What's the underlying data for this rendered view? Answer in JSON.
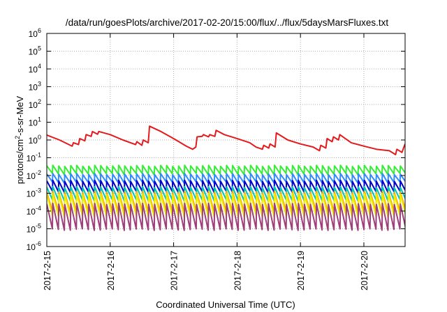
{
  "chart_data": {
    "type": "line",
    "title": "/data/run/goesPlots/archive/2017-02-20/15:00/flux/../flux/5daysMarsFluxes.txt",
    "xlabel": "Coordinated Universal Time (UTC)",
    "ylabel": {
      "base": "protons/cm",
      "sup": "2",
      "rest": "-s-sr-MeV"
    },
    "yscale": "log",
    "ylim_exp": [
      -6,
      6
    ],
    "y_ticks": [
      {
        "base": "10",
        "exp": "-6"
      },
      {
        "base": "10",
        "exp": "-5"
      },
      {
        "base": "10",
        "exp": "-4"
      },
      {
        "base": "10",
        "exp": "-3"
      },
      {
        "base": "10",
        "exp": "-2"
      },
      {
        "base": "10",
        "exp": "-1"
      },
      {
        "base": "10",
        "exp": "0"
      },
      {
        "base": "10",
        "exp": "1"
      },
      {
        "base": "10",
        "exp": "2"
      },
      {
        "base": "10",
        "exp": "3"
      },
      {
        "base": "10",
        "exp": "4"
      },
      {
        "base": "10",
        "exp": "5"
      },
      {
        "base": "10",
        "exp": "6"
      }
    ],
    "x_ticks": [
      "2017-2-15",
      "2017-2-16",
      "2017-2-17",
      "2017-2-18",
      "2017-2-19",
      "2017-2-20"
    ],
    "xlim_days": [
      0,
      5.65
    ],
    "grid": true,
    "series": [
      {
        "color": "#e41a1c",
        "points": [
          [
            0.0,
            1.9
          ],
          [
            0.2,
            1.0
          ],
          [
            0.4,
            0.45
          ],
          [
            0.42,
            0.7
          ],
          [
            0.5,
            0.55
          ],
          [
            0.52,
            1.2
          ],
          [
            0.6,
            0.9
          ],
          [
            0.62,
            2.0
          ],
          [
            0.7,
            1.6
          ],
          [
            0.72,
            3.0
          ],
          [
            0.8,
            2.1
          ],
          [
            0.82,
            3.0
          ],
          [
            1.0,
            2.0
          ],
          [
            1.2,
            1.0
          ],
          [
            1.4,
            0.55
          ],
          [
            1.42,
            0.8
          ],
          [
            1.5,
            0.5
          ],
          [
            1.52,
            1.0
          ],
          [
            1.6,
            0.7
          ],
          [
            1.62,
            6.0
          ],
          [
            1.8,
            3.0
          ],
          [
            2.0,
            1.2
          ],
          [
            2.2,
            0.45
          ],
          [
            2.3,
            0.3
          ],
          [
            2.35,
            0.4
          ],
          [
            2.37,
            1.5
          ],
          [
            2.45,
            1.6
          ],
          [
            2.47,
            2.0
          ],
          [
            2.55,
            1.5
          ],
          [
            2.57,
            2.0
          ],
          [
            2.65,
            1.6
          ],
          [
            2.67,
            3.5
          ],
          [
            2.8,
            2.0
          ],
          [
            3.0,
            1.2
          ],
          [
            3.2,
            0.7
          ],
          [
            3.3,
            0.4
          ],
          [
            3.4,
            0.3
          ],
          [
            3.42,
            0.5
          ],
          [
            3.5,
            0.35
          ],
          [
            3.52,
            0.6
          ],
          [
            3.6,
            0.4
          ],
          [
            3.62,
            2.5
          ],
          [
            3.8,
            1.0
          ],
          [
            4.0,
            0.6
          ],
          [
            4.2,
            0.4
          ],
          [
            4.3,
            0.25
          ],
          [
            4.32,
            0.5
          ],
          [
            4.4,
            0.35
          ],
          [
            4.42,
            1.2
          ],
          [
            4.5,
            0.8
          ],
          [
            4.52,
            1.5
          ],
          [
            4.6,
            1.0
          ],
          [
            4.62,
            2.0
          ],
          [
            4.8,
            0.7
          ],
          [
            5.0,
            0.45
          ],
          [
            5.2,
            0.3
          ],
          [
            5.4,
            0.25
          ],
          [
            5.5,
            0.15
          ],
          [
            5.52,
            0.3
          ],
          [
            5.6,
            0.2
          ],
          [
            5.65,
            0.6
          ]
        ]
      },
      {
        "color": "#33ee33",
        "sawtooth": {
          "period": 0.0945,
          "high": 0.035,
          "low": 0.012
        }
      },
      {
        "color": "#2f8cff",
        "sawtooth": {
          "period": 0.0945,
          "high": 0.012,
          "low": 0.004
        }
      },
      {
        "color": "#0000cc",
        "sawtooth": {
          "period": 0.0945,
          "high": 0.005,
          "low": 0.0012
        }
      },
      {
        "color": "#00c8b4",
        "sawtooth": {
          "period": 0.0945,
          "high": 0.0022,
          "low": 0.0004
        }
      },
      {
        "color": "#ffa500",
        "sawtooth": {
          "period": 0.0945,
          "high": 0.0012,
          "low": 9e-05
        }
      },
      {
        "color": "#eeee00",
        "sawtooth": {
          "period": 0.0945,
          "high": 0.0009,
          "low": 5e-05
        }
      },
      {
        "color": "#9e3f78",
        "sawtooth": {
          "period": 0.0945,
          "high": 0.00025,
          "low": 9e-06
        }
      }
    ]
  }
}
